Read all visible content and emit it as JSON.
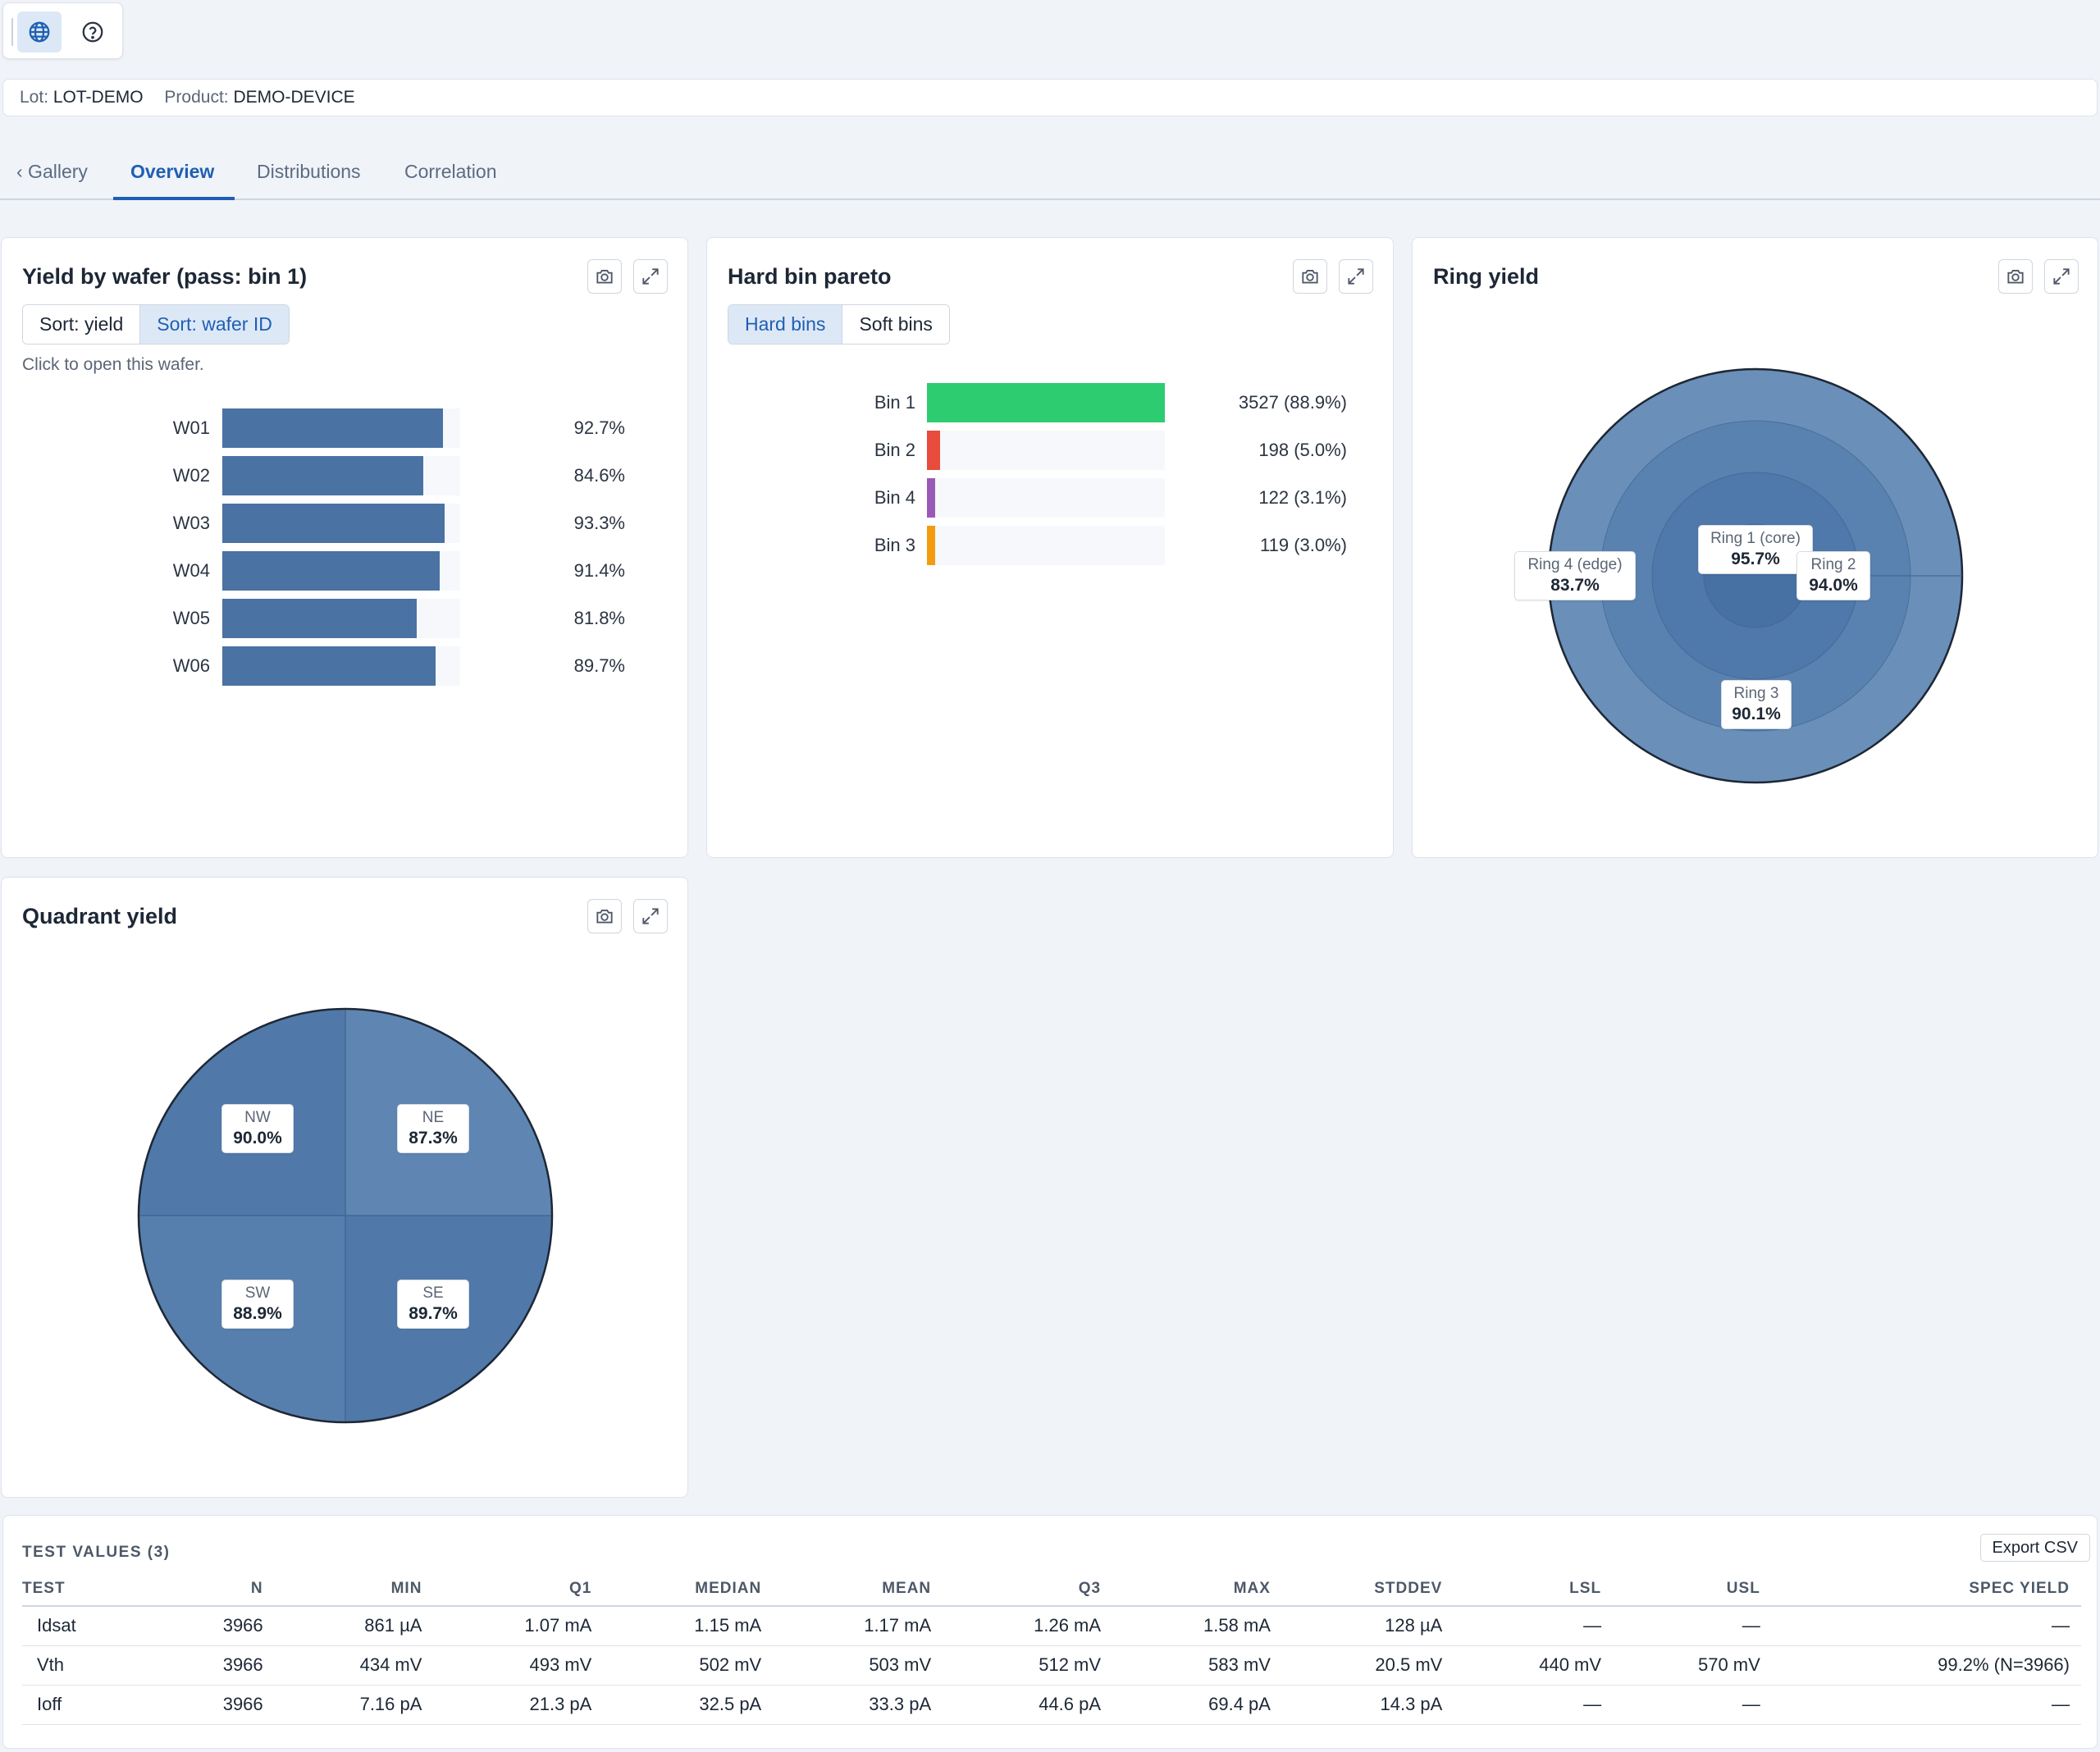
{
  "toolbar": {
    "icons": [
      "globe-icon",
      "help-icon"
    ]
  },
  "lot": {
    "lot_label": "Lot:",
    "lot_value": "LOT-DEMO",
    "product_label": "Product:",
    "product_value": "DEMO-DEVICE"
  },
  "tabs": [
    {
      "label": "‹ Gallery"
    },
    {
      "label": "Overview",
      "active": true
    },
    {
      "label": "Distributions"
    },
    {
      "label": "Correlation"
    }
  ],
  "yield_card": {
    "title": "Yield by wafer (pass: bin 1)",
    "sort_yield": "Sort: yield",
    "sort_wafer": "Sort: wafer ID",
    "hint": "Click to open this wafer."
  },
  "bin_card": {
    "title": "Hard bin pareto",
    "hard_label": "Hard bins",
    "soft_label": "Soft bins"
  },
  "ring_card": {
    "title": "Ring yield"
  },
  "quad_card": {
    "title": "Quadrant yield"
  },
  "chart_data": [
    {
      "type": "bar",
      "orientation": "horizontal",
      "title": "Yield by wafer (pass: bin 1)",
      "categories": [
        "W01",
        "W02",
        "W03",
        "W04",
        "W05",
        "W06"
      ],
      "values": [
        92.7,
        84.6,
        93.3,
        91.4,
        81.8,
        89.7
      ],
      "value_labels": [
        "92.7%",
        "84.6%",
        "93.3%",
        "91.4%",
        "81.8%",
        "89.7%"
      ],
      "xlim": [
        0,
        100
      ],
      "color": "#4a72a3"
    },
    {
      "type": "bar",
      "orientation": "horizontal",
      "title": "Hard bin pareto",
      "categories": [
        "Bin 1",
        "Bin 2",
        "Bin 4",
        "Bin 3"
      ],
      "values": [
        3527,
        198,
        122,
        119
      ],
      "percent": [
        88.9,
        5.0,
        3.1,
        3.0
      ],
      "value_labels": [
        "3527 (88.9%)",
        "198 (5.0%)",
        "122 (3.1%)",
        "119 (3.0%)"
      ],
      "colors": [
        "#2ecc71",
        "#e74c3c",
        "#9b59b6",
        "#f39c12"
      ]
    },
    {
      "type": "wafer-rings",
      "title": "Ring yield",
      "rings": [
        {
          "name": "Ring 1 (core)",
          "value": 95.7,
          "label": "95.7%"
        },
        {
          "name": "Ring 2",
          "value": 94.0,
          "label": "94.0%"
        },
        {
          "name": "Ring 3",
          "value": 90.1,
          "label": "90.1%"
        },
        {
          "name": "Ring 4 (edge)",
          "value": 83.7,
          "label": "83.7%"
        }
      ]
    },
    {
      "type": "wafer-quadrants",
      "title": "Quadrant yield",
      "quadrants": [
        {
          "name": "NW",
          "value": 90.0,
          "label": "90.0%"
        },
        {
          "name": "NE",
          "value": 87.3,
          "label": "87.3%"
        },
        {
          "name": "SW",
          "value": 88.9,
          "label": "88.9%"
        },
        {
          "name": "SE",
          "value": 89.7,
          "label": "89.7%"
        }
      ]
    }
  ],
  "test_table": {
    "title": "TEST VALUES (3)",
    "export_label": "Export CSV",
    "columns": [
      "TEST",
      "N",
      "MIN",
      "Q1",
      "MEDIAN",
      "MEAN",
      "Q3",
      "MAX",
      "STDDEV",
      "LSL",
      "USL",
      "SPEC YIELD"
    ],
    "rows": [
      [
        "Idsat",
        "3966",
        "861 µA",
        "1.07 mA",
        "1.15 mA",
        "1.17 mA",
        "1.26 mA",
        "1.58 mA",
        "128 µA",
        "—",
        "—",
        "—"
      ],
      [
        "Vth",
        "3966",
        "434 mV",
        "493 mV",
        "502 mV",
        "503 mV",
        "512 mV",
        "583 mV",
        "20.5 mV",
        "440 mV",
        "570 mV",
        "99.2% (N=3966)"
      ],
      [
        "Ioff",
        "3966",
        "7.16 pA",
        "21.3 pA",
        "32.5 pA",
        "33.3 pA",
        "44.6 pA",
        "69.4 pA",
        "14.3 pA",
        "—",
        "—",
        "—"
      ]
    ]
  }
}
